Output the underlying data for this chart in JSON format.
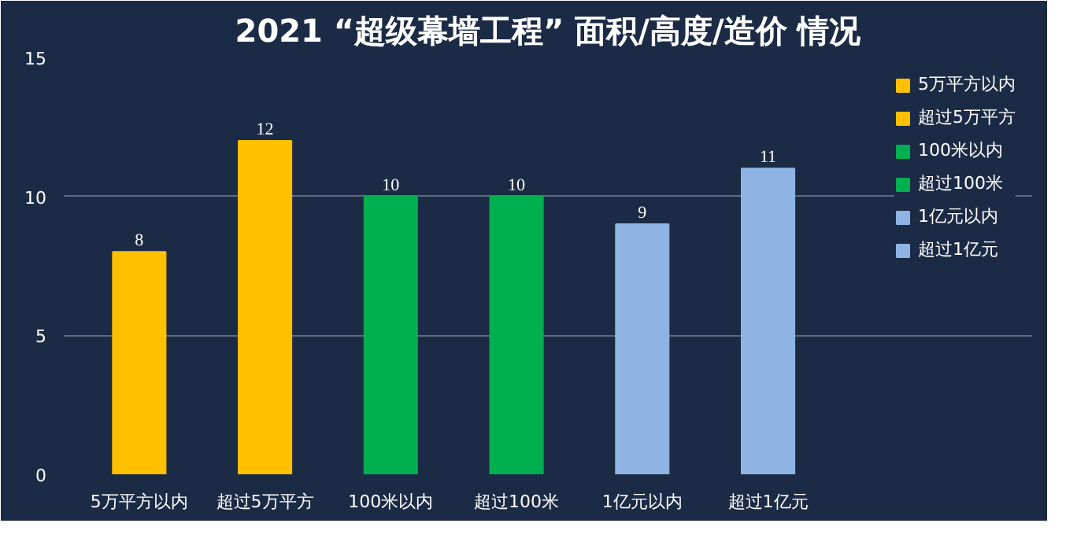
{
  "chart_data": {
    "type": "bar",
    "title": "2021 “超级幕墙工程” 面积/高度/造价 情况",
    "categories": [
      "5万平方以内",
      "超过5万平方",
      "100米以内",
      "超过100米",
      "1亿元以内",
      "超过1亿元"
    ],
    "series": [
      {
        "name": "5万平方以内",
        "color": "#ffc000",
        "values": [
          8,
          null,
          null,
          null,
          null,
          null
        ]
      },
      {
        "name": "超过5万平方",
        "color": "#ffc000",
        "values": [
          null,
          12,
          null,
          null,
          null,
          null
        ]
      },
      {
        "name": "100米以内",
        "color": "#00b050",
        "values": [
          null,
          null,
          10,
          null,
          null,
          null
        ]
      },
      {
        "name": "超过100米",
        "color": "#00b050",
        "values": [
          null,
          null,
          null,
          10,
          null,
          null
        ]
      },
      {
        "name": "1亿元以内",
        "color": "#8eb4e3",
        "values": [
          null,
          null,
          null,
          null,
          9,
          null
        ]
      },
      {
        "name": "超过1亿元",
        "color": "#8eb4e3",
        "values": [
          null,
          null,
          null,
          null,
          null,
          11
        ]
      }
    ],
    "ylim": [
      0,
      15
    ],
    "yticks": [
      0,
      5,
      10,
      15
    ],
    "grid": "y",
    "legend": "right",
    "data_labels": true
  }
}
